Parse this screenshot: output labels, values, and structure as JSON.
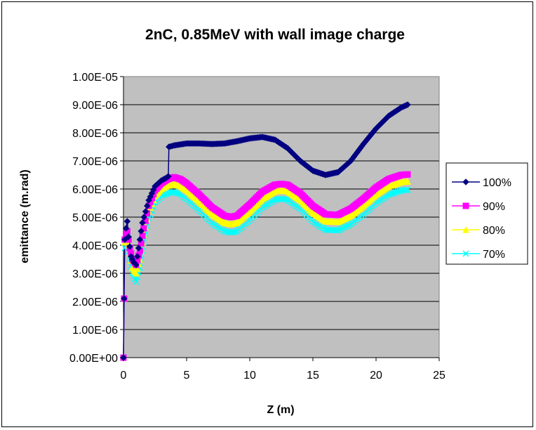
{
  "chart_data": {
    "type": "line",
    "title": "2nC, 0.85MeV with wall image charge",
    "xlabel": "Z (m)",
    "ylabel": "emittance (m.rad)",
    "xlim": [
      0,
      25
    ],
    "ylim": [
      0,
      1e-05
    ],
    "x_ticks": [
      "0",
      "5",
      "10",
      "15",
      "20",
      "25"
    ],
    "y_ticks": [
      "0.00E+00",
      "1.00E-06",
      "2.00E-06",
      "3.00E-06",
      "4.00E-06",
      "5.00E-06",
      "6.00E-06",
      "7.00E-06",
      "8.00E-06",
      "9.00E-06",
      "1.00E-05"
    ],
    "grid": "horizontal",
    "plot_background": "#c0c0c0",
    "legend_position": "right",
    "series": [
      {
        "name": "100%",
        "color": "#000080",
        "marker": "diamond",
        "points": [
          [
            0,
            0
          ],
          [
            0.05,
            2.1e-06
          ],
          [
            0.1,
            4.2e-06
          ],
          [
            0.2,
            4.6e-06
          ],
          [
            0.3,
            4.85e-06
          ],
          [
            0.4,
            4.3e-06
          ],
          [
            0.6,
            3.6e-06
          ],
          [
            0.8,
            3.4e-06
          ],
          [
            1.0,
            3.3e-06
          ],
          [
            1.2,
            3.9e-06
          ],
          [
            1.5,
            4.8e-06
          ],
          [
            2.0,
            5.6e-06
          ],
          [
            2.5,
            6.1e-06
          ],
          [
            3.0,
            6.3e-06
          ],
          [
            3.4,
            6.4e-06
          ],
          [
            3.55,
            6.45e-06
          ],
          [
            3.6,
            7.5e-06
          ],
          [
            4.0,
            7.55e-06
          ],
          [
            5.0,
            7.62e-06
          ],
          [
            6.0,
            7.62e-06
          ],
          [
            7.0,
            7.6e-06
          ],
          [
            8.0,
            7.62e-06
          ],
          [
            9.0,
            7.7e-06
          ],
          [
            10.0,
            7.8e-06
          ],
          [
            11.0,
            7.85e-06
          ],
          [
            12.0,
            7.75e-06
          ],
          [
            13.0,
            7.45e-06
          ],
          [
            14.0,
            7e-06
          ],
          [
            15.0,
            6.65e-06
          ],
          [
            16.0,
            6.5e-06
          ],
          [
            17.0,
            6.6e-06
          ],
          [
            18.0,
            7e-06
          ],
          [
            19.0,
            7.6e-06
          ],
          [
            20.0,
            8.15e-06
          ],
          [
            21.0,
            8.6e-06
          ],
          [
            22.0,
            8.9e-06
          ],
          [
            22.5,
            9e-06
          ]
        ]
      },
      {
        "name": "90%",
        "color": "#ff00ff",
        "marker": "square",
        "points": [
          [
            0,
            0
          ],
          [
            0.05,
            2.1e-06
          ],
          [
            0.1,
            4.2e-06
          ],
          [
            0.3,
            4.5e-06
          ],
          [
            0.5,
            3.9e-06
          ],
          [
            0.7,
            3.5e-06
          ],
          [
            1.0,
            3.3e-06
          ],
          [
            1.3,
            3.8e-06
          ],
          [
            1.6,
            4.6e-06
          ],
          [
            2.0,
            5.4e-06
          ],
          [
            2.5,
            5.95e-06
          ],
          [
            3.0,
            6.2e-06
          ],
          [
            3.5,
            6.35e-06
          ],
          [
            4.0,
            6.42e-06
          ],
          [
            4.5,
            6.35e-06
          ],
          [
            5.0,
            6.2e-06
          ],
          [
            6.0,
            5.8e-06
          ],
          [
            7.0,
            5.35e-06
          ],
          [
            8.0,
            5.05e-06
          ],
          [
            8.5,
            5e-06
          ],
          [
            9.0,
            5.05e-06
          ],
          [
            10.0,
            5.45e-06
          ],
          [
            11.0,
            5.9e-06
          ],
          [
            12.0,
            6.15e-06
          ],
          [
            12.5,
            6.18e-06
          ],
          [
            13.0,
            6.15e-06
          ],
          [
            14.0,
            5.85e-06
          ],
          [
            15.0,
            5.4e-06
          ],
          [
            16.0,
            5.1e-06
          ],
          [
            17.0,
            5.08e-06
          ],
          [
            18.0,
            5.3e-06
          ],
          [
            19.0,
            5.65e-06
          ],
          [
            20.0,
            6.05e-06
          ],
          [
            21.0,
            6.35e-06
          ],
          [
            22.0,
            6.5e-06
          ],
          [
            22.5,
            6.52e-06
          ]
        ]
      },
      {
        "name": "80%",
        "color": "#ffff00",
        "marker": "triangle",
        "points": [
          [
            0,
            0
          ],
          [
            0.05,
            2.1e-06
          ],
          [
            0.1,
            4.1e-06
          ],
          [
            0.3,
            4.3e-06
          ],
          [
            0.5,
            3.7e-06
          ],
          [
            0.7,
            3.2e-06
          ],
          [
            1.0,
            3e-06
          ],
          [
            1.3,
            3.5e-06
          ],
          [
            1.6,
            4.4e-06
          ],
          [
            2.0,
            5.2e-06
          ],
          [
            2.5,
            5.75e-06
          ],
          [
            3.0,
            6e-06
          ],
          [
            3.5,
            6.12e-06
          ],
          [
            4.0,
            6.18e-06
          ],
          [
            4.5,
            6.1e-06
          ],
          [
            5.0,
            5.95e-06
          ],
          [
            6.0,
            5.55e-06
          ],
          [
            7.0,
            5.1e-06
          ],
          [
            8.0,
            4.8e-06
          ],
          [
            8.5,
            4.75e-06
          ],
          [
            9.0,
            4.8e-06
          ],
          [
            10.0,
            5.2e-06
          ],
          [
            11.0,
            5.65e-06
          ],
          [
            12.0,
            5.92e-06
          ],
          [
            12.5,
            5.95e-06
          ],
          [
            13.0,
            5.92e-06
          ],
          [
            14.0,
            5.6e-06
          ],
          [
            15.0,
            5.15e-06
          ],
          [
            16.0,
            4.85e-06
          ],
          [
            17.0,
            4.83e-06
          ],
          [
            18.0,
            5.05e-06
          ],
          [
            19.0,
            5.4e-06
          ],
          [
            20.0,
            5.8e-06
          ],
          [
            21.0,
            6.1e-06
          ],
          [
            22.0,
            6.25e-06
          ],
          [
            22.5,
            6.27e-06
          ]
        ]
      },
      {
        "name": "70%",
        "color": "#00ffff",
        "marker": "x",
        "points": [
          [
            0,
            0
          ],
          [
            0.05,
            2.1e-06
          ],
          [
            0.1,
            3.9e-06
          ],
          [
            0.3,
            4.05e-06
          ],
          [
            0.5,
            3.5e-06
          ],
          [
            0.7,
            3e-06
          ],
          [
            1.0,
            2.7e-06
          ],
          [
            1.3,
            3.2e-06
          ],
          [
            1.6,
            4.1e-06
          ],
          [
            2.0,
            4.95e-06
          ],
          [
            2.5,
            5.5e-06
          ],
          [
            3.0,
            5.75e-06
          ],
          [
            3.5,
            5.85e-06
          ],
          [
            4.0,
            5.9e-06
          ],
          [
            4.5,
            5.82e-06
          ],
          [
            5.0,
            5.65e-06
          ],
          [
            6.0,
            5.25e-06
          ],
          [
            7.0,
            4.8e-06
          ],
          [
            8.0,
            4.5e-06
          ],
          [
            8.5,
            4.45e-06
          ],
          [
            9.0,
            4.5e-06
          ],
          [
            10.0,
            4.9e-06
          ],
          [
            11.0,
            5.35e-06
          ],
          [
            12.0,
            5.62e-06
          ],
          [
            12.5,
            5.65e-06
          ],
          [
            13.0,
            5.62e-06
          ],
          [
            14.0,
            5.3e-06
          ],
          [
            15.0,
            4.85e-06
          ],
          [
            16.0,
            4.55e-06
          ],
          [
            17.0,
            4.53e-06
          ],
          [
            18.0,
            4.75e-06
          ],
          [
            19.0,
            5.1e-06
          ],
          [
            20.0,
            5.5e-06
          ],
          [
            21.0,
            5.8e-06
          ],
          [
            22.0,
            5.95e-06
          ],
          [
            22.5,
            5.97e-06
          ]
        ]
      }
    ]
  }
}
